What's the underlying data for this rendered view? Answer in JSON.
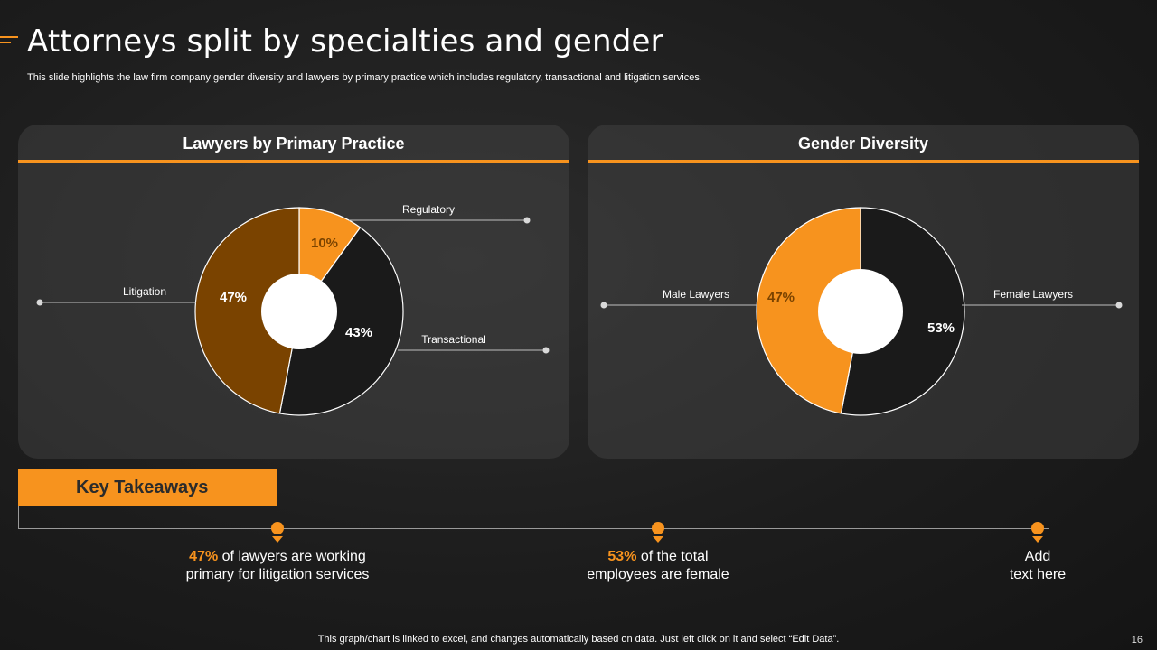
{
  "header": {
    "title": "Attorneys split by specialties and gender",
    "subtitle": "This slide highlights the law firm company gender diversity and lawyers by primary practice which includes regulatory, transactional and litigation services."
  },
  "colors": {
    "accent": "#f7931e",
    "dark_brown": "#7a4300",
    "near_black": "#1a1a1a"
  },
  "chart_data": [
    {
      "type": "pie",
      "title": "Lawyers by Primary Practice",
      "categories": [
        "Regulatory",
        "Transactional",
        "Litigation"
      ],
      "values": [
        10,
        43,
        47
      ],
      "labels": [
        "10%",
        "43%",
        "47%"
      ],
      "colors": [
        "#f7931e",
        "#1a1a1a",
        "#7a4300"
      ],
      "donut": true
    },
    {
      "type": "pie",
      "title": "Gender Diversity",
      "categories": [
        "Female Lawyers",
        "Male Lawyers"
      ],
      "values": [
        53,
        47
      ],
      "labels": [
        "53%",
        "47%"
      ],
      "colors": [
        "#1a1a1a",
        "#f7931e"
      ],
      "donut": true
    }
  ],
  "takeaways": {
    "heading": "Key Takeaways",
    "items": [
      {
        "highlight": "47%",
        "line1": " of lawyers  are working",
        "line2": "primary for litigation services"
      },
      {
        "highlight": "53%",
        "line1": " of the total",
        "line2": "employees are female"
      },
      {
        "highlight": "",
        "line1": "Add",
        "line2": "text here"
      }
    ]
  },
  "footer": {
    "note": "This graph/chart is linked to excel,  and changes automatically based on data. Just left click on it and select “Edit Data”.",
    "page_number": "16"
  }
}
